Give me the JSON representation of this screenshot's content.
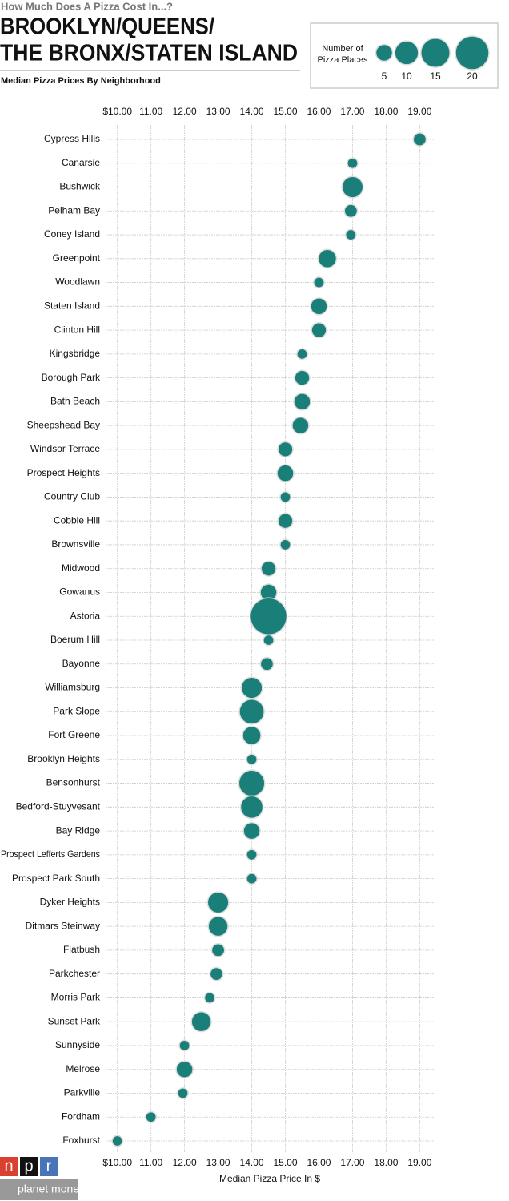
{
  "chart_data": {
    "type": "bubble",
    "kicker": "How Much Does A Pizza Cost In...?",
    "title": [
      "BROOKLYN/QUEENS/",
      "THE BRONX/STATEN ISLAND"
    ],
    "subtitle": "Median Pizza Prices By Neighborhood",
    "x_label": "Median Pizza Price In $",
    "color": "#1a7f78",
    "grid": true,
    "size_legend": {
      "title": [
        "Number of",
        "Pizza Places"
      ],
      "sizes": [
        5,
        10,
        15,
        20
      ]
    },
    "xlim": [
      9.65,
      19.42
    ],
    "xticks": [
      {
        "value": 10,
        "label": "$10.00"
      },
      {
        "value": 11,
        "label": "11.00"
      },
      {
        "value": 12,
        "label": "12.00"
      },
      {
        "value": 13,
        "label": "13.00"
      },
      {
        "value": 14,
        "label": "14.00"
      },
      {
        "value": 15,
        "label": "15.00"
      },
      {
        "value": 16,
        "label": "16.00"
      },
      {
        "value": 17,
        "label": "17.00"
      },
      {
        "value": 18,
        "label": "18.00"
      },
      {
        "value": 19,
        "label": "19.00"
      }
    ],
    "categories": [
      "Cypress Hills",
      "Canarsie",
      "Bushwick",
      "Pelham Bay",
      "Coney Island",
      "Greenpoint",
      "Woodlawn",
      "Staten Island",
      "Clinton Hill",
      "Kingsbridge",
      "Borough Park",
      "Bath Beach",
      "Sheepshead Bay",
      "Windsor Terrace",
      "Prospect Heights",
      "Country Club",
      "Cobble Hill",
      "Brownsville",
      "Midwood",
      "Gowanus",
      "Astoria",
      "Boerum Hill",
      "Bayonne",
      "Williamsburg",
      "Park Slope",
      "Fort Greene",
      "Brooklyn Heights",
      "Bensonhurst",
      "Bedford-Stuyvesant",
      "Bay Ridge",
      "Prospect Lefferts Gardens",
      "Prospect Park South",
      "Dyker Heights",
      "Ditmars Steinway",
      "Flatbush",
      "Parkchester",
      "Morris Park",
      "Sunset Park",
      "Sunnyside",
      "Melrose",
      "Parkville",
      "Fordham",
      "Foxhurst"
    ],
    "values": [
      19.0,
      17.0,
      17.0,
      16.95,
      16.95,
      16.25,
      16.0,
      16.0,
      16.0,
      15.5,
      15.5,
      15.5,
      15.45,
      15.0,
      15.0,
      15.0,
      15.0,
      15.0,
      14.5,
      14.5,
      14.5,
      14.5,
      14.45,
      14.0,
      14.0,
      14.0,
      14.0,
      14.0,
      14.0,
      14.0,
      14.0,
      14.0,
      13.0,
      13.0,
      13.0,
      12.95,
      12.75,
      12.5,
      12.0,
      12.0,
      11.95,
      11.0,
      10.0
    ],
    "sizes": [
      3,
      2,
      8,
      3,
      2,
      6,
      2,
      5,
      4,
      2,
      4,
      5,
      5,
      4,
      5,
      2,
      4,
      2,
      4,
      5,
      24,
      2,
      3,
      8,
      11,
      6,
      2,
      12,
      9,
      5,
      2,
      2,
      8,
      7,
      3,
      3,
      2,
      7,
      2,
      5,
      2,
      2,
      2
    ],
    "logo": {
      "letters": [
        "n",
        "p",
        "r"
      ],
      "brand": "planet money"
    }
  }
}
